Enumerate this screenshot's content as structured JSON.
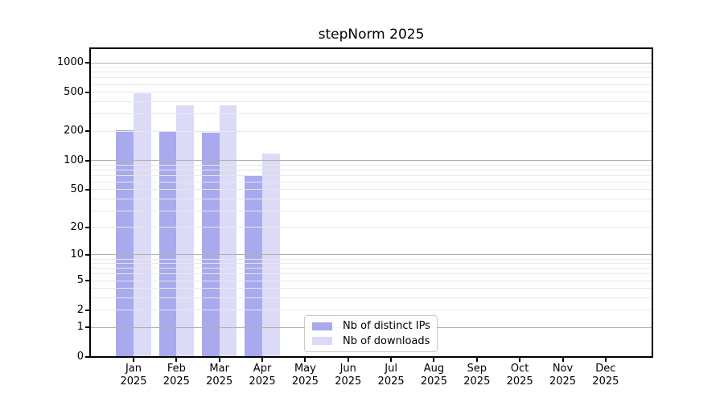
{
  "title": "stepNorm 2025",
  "chart_data": {
    "type": "bar",
    "title": "stepNorm 2025",
    "categories": [
      "Jan",
      "Feb",
      "Mar",
      "Apr",
      "May",
      "Jun",
      "Jul",
      "Aug",
      "Sep",
      "Oct",
      "Nov",
      "Dec"
    ],
    "category_year": "2025",
    "series": [
      {
        "name": "Nb of distinct IPs",
        "color": "#a9a9ee",
        "values": [
          205,
          202,
          193,
          70,
          0,
          0,
          0,
          0,
          0,
          0,
          0,
          0
        ]
      },
      {
        "name": "Nb of downloads",
        "color": "#dbdbf7",
        "values": [
          485,
          368,
          368,
          118,
          0,
          0,
          0,
          0,
          0,
          0,
          0,
          0
        ]
      }
    ],
    "y_axis": {
      "scale": "log10(1+value)",
      "tick_values": [
        0,
        1,
        2,
        5,
        10,
        20,
        50,
        100,
        200,
        500,
        1000
      ],
      "tick_labels": [
        "0",
        "1",
        "2",
        "5",
        "10",
        "20",
        "50",
        "100",
        "200",
        "500",
        "1000"
      ],
      "major_gridline_values": [
        1,
        10,
        100,
        1000
      ],
      "minor_gridline_decades": [
        1,
        10,
        100
      ],
      "ylim": [
        0,
        1000
      ]
    },
    "xlabel": "",
    "ylabel": "",
    "grid": true,
    "legend": {
      "position": "lower-center",
      "entries": [
        "Nb of distinct IPs",
        "Nb of downloads"
      ]
    }
  },
  "colors": {
    "bar_distinct_ips": "#a9a9ee",
    "bar_downloads": "#dbdbf7",
    "grid_major": "#b0b0b0",
    "grid_minor": "#e8e8e8",
    "axis": "#000000",
    "text": "#000000",
    "legend_border": "#c9c9c9",
    "background": "#ffffff"
  }
}
